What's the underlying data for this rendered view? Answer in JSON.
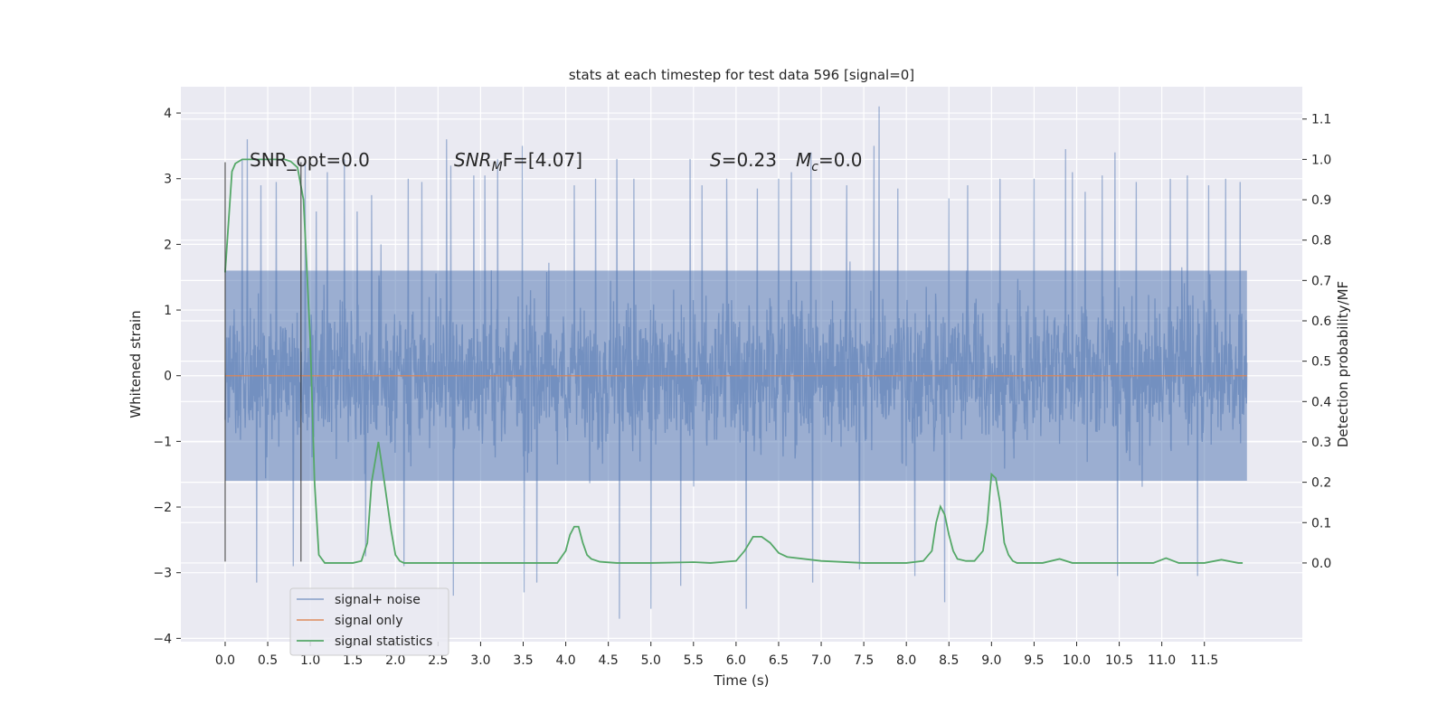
{
  "chart_data": {
    "type": "line",
    "title": "stats at each timestep for test data 596 [signal=0]",
    "xlabel": "Time (s)",
    "ylabel": "Whitened strain",
    "y2label": "Detection probability/MF",
    "xlim": [
      -0.52,
      12.65
    ],
    "ylim": [
      -4.05,
      4.4
    ],
    "y2lim": [
      -0.195,
      1.18
    ],
    "x_ticks": [
      "0.0",
      "0.5",
      "1.0",
      "1.5",
      "2.0",
      "2.5",
      "3.0",
      "3.5",
      "4.0",
      "4.5",
      "5.0",
      "5.5",
      "6.0",
      "6.5",
      "7.0",
      "7.5",
      "8.0",
      "8.5",
      "9.0",
      "9.5",
      "10.0",
      "10.5",
      "11.0",
      "11.5"
    ],
    "y_ticks": [
      "−4",
      "−3",
      "−2",
      "−1",
      "0",
      "1",
      "2",
      "3",
      "4"
    ],
    "y2_ticks": [
      "0.0",
      "0.1",
      "0.2",
      "0.3",
      "0.4",
      "0.5",
      "0.6",
      "0.7",
      "0.8",
      "0.9",
      "1.0",
      "1.1"
    ],
    "annotations": {
      "snr_opt": "SNR_opt=0.0",
      "snr_mf_main": "SNR",
      "snr_mf_sub": "M",
      "snr_mf_rest": "F=[4.07]",
      "s_var": "S",
      "s_rest": "=0.23",
      "mc_var": "M",
      "mc_sub": "c",
      "mc_rest": "=0.0"
    },
    "window_markers": [
      0.0,
      0.89
    ],
    "series": [
      {
        "name": "signal+ noise",
        "color": "#4c72b0",
        "generated": "noise",
        "x_range": [
          0.0,
          12.0
        ],
        "core_range": [
          -1.6,
          1.6
        ],
        "spikes": [
          {
            "x": 0.2,
            "y": 3.3
          },
          {
            "x": 0.26,
            "y": 3.6
          },
          {
            "x": 0.37,
            "y": -3.15
          },
          {
            "x": 0.42,
            "y": 2.9
          },
          {
            "x": 0.6,
            "y": 2.95
          },
          {
            "x": 0.8,
            "y": -2.9
          },
          {
            "x": 0.94,
            "y": 3.25
          },
          {
            "x": 1.07,
            "y": 2.5
          },
          {
            "x": 1.2,
            "y": 3.1
          },
          {
            "x": 1.4,
            "y": 3.3
          },
          {
            "x": 1.55,
            "y": 2.5
          },
          {
            "x": 1.65,
            "y": -2.75
          },
          {
            "x": 1.72,
            "y": 2.75
          },
          {
            "x": 1.83,
            "y": 2.0
          },
          {
            "x": 2.1,
            "y": -2.9
          },
          {
            "x": 2.15,
            "y": 3.0
          },
          {
            "x": 2.31,
            "y": 2.95
          },
          {
            "x": 2.6,
            "y": 3.6
          },
          {
            "x": 2.65,
            "y": 3.2
          },
          {
            "x": 2.68,
            "y": -3.35
          },
          {
            "x": 2.92,
            "y": 3.05
          },
          {
            "x": 3.05,
            "y": 3.05
          },
          {
            "x": 3.2,
            "y": 3.3
          },
          {
            "x": 3.49,
            "y": 3.5
          },
          {
            "x": 3.51,
            "y": -3.3
          },
          {
            "x": 3.66,
            "y": -3.15
          },
          {
            "x": 4.1,
            "y": 2.9
          },
          {
            "x": 4.35,
            "y": 3.0
          },
          {
            "x": 4.6,
            "y": 3.3
          },
          {
            "x": 4.63,
            "y": -3.7
          },
          {
            "x": 4.8,
            "y": 3.0
          },
          {
            "x": 5.0,
            "y": -3.55
          },
          {
            "x": 5.35,
            "y": -3.2
          },
          {
            "x": 5.46,
            "y": 3.3
          },
          {
            "x": 5.6,
            "y": 2.9
          },
          {
            "x": 5.89,
            "y": 3.0
          },
          {
            "x": 6.12,
            "y": -3.55
          },
          {
            "x": 6.25,
            "y": 2.85
          },
          {
            "x": 6.5,
            "y": 3.0
          },
          {
            "x": 6.65,
            "y": 3.1
          },
          {
            "x": 6.88,
            "y": 3.4
          },
          {
            "x": 6.9,
            "y": -3.15
          },
          {
            "x": 7.3,
            "y": 2.9
          },
          {
            "x": 7.45,
            "y": -2.95
          },
          {
            "x": 7.62,
            "y": 3.5
          },
          {
            "x": 7.68,
            "y": 4.1
          },
          {
            "x": 7.9,
            "y": 2.85
          },
          {
            "x": 8.1,
            "y": -3.05
          },
          {
            "x": 8.45,
            "y": -3.45
          },
          {
            "x": 8.5,
            "y": 2.7
          },
          {
            "x": 8.72,
            "y": 2.9
          },
          {
            "x": 9.1,
            "y": 3.0
          },
          {
            "x": 9.5,
            "y": 3.0
          },
          {
            "x": 9.87,
            "y": 3.45
          },
          {
            "x": 9.95,
            "y": 3.1
          },
          {
            "x": 10.1,
            "y": 2.8
          },
          {
            "x": 10.3,
            "y": 3.05
          },
          {
            "x": 10.48,
            "y": -3.05
          },
          {
            "x": 10.45,
            "y": 3.4
          },
          {
            "x": 10.7,
            "y": 2.95
          },
          {
            "x": 11.1,
            "y": 3.0
          },
          {
            "x": 11.3,
            "y": 3.05
          },
          {
            "x": 11.42,
            "y": -3.05
          },
          {
            "x": 11.55,
            "y": 2.9
          },
          {
            "x": 11.75,
            "y": 3.0
          },
          {
            "x": 11.92,
            "y": 2.95
          }
        ]
      },
      {
        "name": "signal only",
        "color": "#dd8452",
        "x": [
          0.0,
          12.0
        ],
        "y": [
          0.0,
          0.0
        ]
      },
      {
        "name": "signal statistics",
        "color": "#55a868",
        "axis": "right",
        "x": [
          0.0,
          0.08,
          0.12,
          0.2,
          0.3,
          0.5,
          0.7,
          0.77,
          0.85,
          0.92,
          1.0,
          1.05,
          1.1,
          1.17,
          1.3,
          1.5,
          1.6,
          1.67,
          1.72,
          1.8,
          1.87,
          1.95,
          2.0,
          2.05,
          2.1,
          2.2,
          2.4,
          2.6,
          3.0,
          3.5,
          3.9,
          4.0,
          4.05,
          4.1,
          4.15,
          4.2,
          4.25,
          4.3,
          4.4,
          4.6,
          5.0,
          5.5,
          5.7,
          6.0,
          6.1,
          6.2,
          6.3,
          6.4,
          6.5,
          6.6,
          7.0,
          7.5,
          8.0,
          8.2,
          8.3,
          8.35,
          8.4,
          8.45,
          8.5,
          8.55,
          8.6,
          8.7,
          8.8,
          8.9,
          8.95,
          9.0,
          9.05,
          9.1,
          9.15,
          9.2,
          9.25,
          9.3,
          9.4,
          9.6,
          9.8,
          9.95,
          10.1,
          10.5,
          10.9,
          11.05,
          11.2,
          11.5,
          11.7,
          11.9,
          11.95
        ],
        "y": [
          0.72,
          0.97,
          0.99,
          1.0,
          1.0,
          1.0,
          1.0,
          0.995,
          0.98,
          0.9,
          0.55,
          0.2,
          0.02,
          0.0,
          0.0,
          0.0,
          0.005,
          0.05,
          0.2,
          0.3,
          0.2,
          0.08,
          0.02,
          0.005,
          0.0,
          0.0,
          0.0,
          0.0,
          0.0,
          0.0,
          0.0,
          0.03,
          0.07,
          0.09,
          0.09,
          0.05,
          0.02,
          0.01,
          0.003,
          0.0,
          0.0,
          0.002,
          0.0,
          0.005,
          0.03,
          0.065,
          0.065,
          0.05,
          0.025,
          0.015,
          0.005,
          0.0,
          0.0,
          0.005,
          0.03,
          0.1,
          0.14,
          0.12,
          0.07,
          0.03,
          0.01,
          0.005,
          0.005,
          0.03,
          0.1,
          0.22,
          0.21,
          0.15,
          0.05,
          0.02,
          0.005,
          0.0,
          0.0,
          0.0,
          0.01,
          0.0,
          0.0,
          0.0,
          0.0,
          0.012,
          0.0,
          0.0,
          0.008,
          0.0,
          0.0
        ]
      }
    ],
    "legend_position": "lower-left",
    "grid": true
  }
}
